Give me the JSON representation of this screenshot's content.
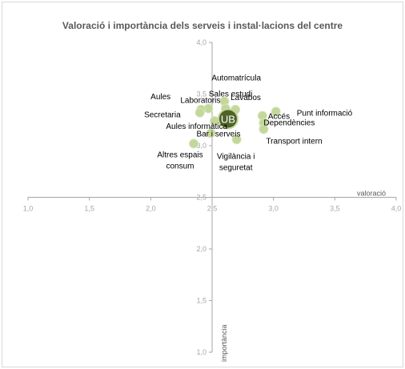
{
  "chart_data": {
    "type": "scatter",
    "title": "Valoració i importància dels serveis i instal·lacions del centre",
    "xlabel": "valoració",
    "ylabel": "importància",
    "xlim": [
      1.0,
      4.0
    ],
    "ylim": [
      1.0,
      4.0
    ],
    "x_ticks": [
      "1,0",
      "1,5",
      "2,0",
      "2,5",
      "3,0",
      "3,5",
      "4,0"
    ],
    "y_ticks": [
      "1,0",
      "1,5",
      "2,0",
      "2,5",
      "3,0",
      "3,5",
      "4,0"
    ],
    "axis_cross": {
      "x": 2.5,
      "y": 2.5
    },
    "grid": false,
    "point_color": "#c4d79b",
    "highlight_color": "#4f6228",
    "points": [
      {
        "label": "Automatrícula",
        "x": 2.6,
        "y": 3.43
      },
      {
        "label": "Sales estudi",
        "x": 2.61,
        "y": 3.36
      },
      {
        "label": "Laboratoris",
        "x": 2.47,
        "y": 3.36
      },
      {
        "label": "Aules",
        "x": 2.41,
        "y": 3.35
      },
      {
        "label": "Lavabos",
        "x": 2.69,
        "y": 3.35
      },
      {
        "label": "Secretaria",
        "x": 2.4,
        "y": 3.32
      },
      {
        "label": "Accés",
        "x": 2.91,
        "y": 3.29
      },
      {
        "label": "Punt informació",
        "x": 3.02,
        "y": 3.33
      },
      {
        "label": "Dependències",
        "x": 2.92,
        "y": 3.22
      },
      {
        "label": "Aules informàtica",
        "x": 2.52,
        "y": 3.24
      },
      {
        "label": "Transport intern",
        "x": 2.92,
        "y": 3.16
      },
      {
        "label": "Bar i serveis",
        "x": 2.49,
        "y": 3.12
      },
      {
        "label": "Altres espais consum",
        "x": 2.35,
        "y": 3.02
      },
      {
        "label": "Vigilància i seguretat",
        "x": 2.7,
        "y": 3.06
      },
      {
        "label": "UB",
        "x": 2.63,
        "y": 3.26,
        "highlight": true
      }
    ]
  }
}
